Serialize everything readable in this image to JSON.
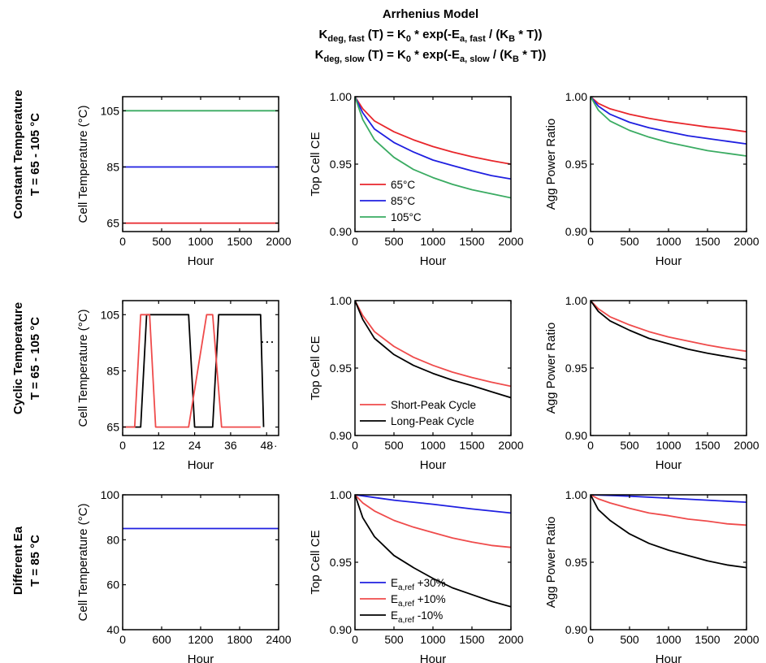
{
  "title": {
    "line1": "Arrhenius Model",
    "line2": {
      "a": "K",
      "b": "deg, fast",
      "c": " (T) = K",
      "d": "0",
      "e": " * exp(-E",
      "f": "a, fast",
      "g": " / (K",
      "h": "B",
      "i": " * T))"
    },
    "line3": {
      "a": "K",
      "b": "deg, slow",
      "c": " (T) = K",
      "d": "0",
      "e": " * exp(-E",
      "f": "a, slow",
      "g": " / (K",
      "h": "B",
      "i": " * T))"
    }
  },
  "rows": [
    {
      "label1": "Constant Temperature",
      "label2": "T = 65 - 105 °C"
    },
    {
      "label1": "Cyclic Temperature",
      "label2": "T = 65 - 105 °C"
    },
    {
      "label1": "Different Ea",
      "label2": "T = 85 °C"
    }
  ],
  "colors": {
    "red": "#e8262b",
    "blue": "#1f1fe0",
    "green": "#3aab62",
    "salmon": "#ef4b4b",
    "black": "#000000"
  },
  "chart_data": [
    {
      "id": "c00",
      "type": "line",
      "xlabel": "Hour",
      "ylabel": "Cell Temperature (°C)",
      "xlim": [
        0,
        2000
      ],
      "ylim": [
        62,
        110
      ],
      "xticks": [
        "0",
        "500",
        "1000",
        "1500",
        "2000"
      ],
      "xtickvals": [
        0,
        500,
        1000,
        1500,
        2000
      ],
      "yticks": [
        "65",
        "85",
        "105"
      ],
      "ytickvals": [
        65,
        85,
        105
      ],
      "series": [
        {
          "color": "#e8262b",
          "x": [
            0,
            2000
          ],
          "y": [
            65,
            65
          ]
        },
        {
          "color": "#1f1fe0",
          "x": [
            0,
            2000
          ],
          "y": [
            85,
            85
          ]
        },
        {
          "color": "#3aab62",
          "x": [
            0,
            2000
          ],
          "y": [
            105,
            105
          ]
        }
      ]
    },
    {
      "id": "c01",
      "type": "line",
      "xlabel": "Hour",
      "ylabel": "Top Cell CE",
      "xlim": [
        0,
        2000
      ],
      "ylim": [
        0.9,
        1.0
      ],
      "xticks": [
        "0",
        "500",
        "1000",
        "1500",
        "2000"
      ],
      "xtickvals": [
        0,
        500,
        1000,
        1500,
        2000
      ],
      "yticks": [
        "0.90",
        "0.95",
        "1.00"
      ],
      "ytickvals": [
        0.9,
        0.95,
        1.0
      ],
      "legend_position": "bottom-left",
      "series": [
        {
          "name": "65°C",
          "color": "#e8262b",
          "x": [
            0,
            100,
            250,
            500,
            750,
            1000,
            1250,
            1500,
            1750,
            2000
          ],
          "y": [
            1.0,
            0.991,
            0.982,
            0.974,
            0.968,
            0.963,
            0.959,
            0.9555,
            0.9525,
            0.95
          ]
        },
        {
          "name": "85°C",
          "color": "#1f1fe0",
          "x": [
            0,
            100,
            250,
            500,
            750,
            1000,
            1250,
            1500,
            1750,
            2000
          ],
          "y": [
            1.0,
            0.988,
            0.976,
            0.966,
            0.959,
            0.953,
            0.949,
            0.945,
            0.9415,
            0.939
          ]
        },
        {
          "name": "105°C",
          "color": "#3aab62",
          "x": [
            0,
            100,
            250,
            500,
            750,
            1000,
            1250,
            1500,
            1750,
            2000
          ],
          "y": [
            1.0,
            0.983,
            0.968,
            0.955,
            0.946,
            0.94,
            0.935,
            0.931,
            0.928,
            0.925
          ]
        }
      ]
    },
    {
      "id": "c02",
      "type": "line",
      "xlabel": "Hour",
      "ylabel": "Agg Power Ratio",
      "xlim": [
        0,
        2000
      ],
      "ylim": [
        0.9,
        1.0
      ],
      "xticks": [
        "0",
        "500",
        "1000",
        "1500",
        "2000"
      ],
      "xtickvals": [
        0,
        500,
        1000,
        1500,
        2000
      ],
      "yticks": [
        "0.90",
        "0.95",
        "1.00"
      ],
      "ytickvals": [
        0.9,
        0.95,
        1.0
      ],
      "series": [
        {
          "color": "#e8262b",
          "x": [
            0,
            100,
            250,
            500,
            750,
            1000,
            1250,
            1500,
            1750,
            2000
          ],
          "y": [
            1.0,
            0.995,
            0.991,
            0.987,
            0.984,
            0.9815,
            0.9795,
            0.9775,
            0.976,
            0.974
          ]
        },
        {
          "color": "#1f1fe0",
          "x": [
            0,
            100,
            250,
            500,
            750,
            1000,
            1250,
            1500,
            1750,
            2000
          ],
          "y": [
            1.0,
            0.993,
            0.987,
            0.981,
            0.977,
            0.974,
            0.971,
            0.969,
            0.967,
            0.965
          ]
        },
        {
          "color": "#3aab62",
          "x": [
            0,
            100,
            250,
            500,
            750,
            1000,
            1250,
            1500,
            1750,
            2000
          ],
          "y": [
            1.0,
            0.99,
            0.982,
            0.975,
            0.97,
            0.966,
            0.963,
            0.96,
            0.958,
            0.956
          ]
        }
      ]
    },
    {
      "id": "c10",
      "type": "line",
      "xlabel": "Hour",
      "ylabel": "Cell Temperature (°C)",
      "xlim": [
        0,
        52
      ],
      "ylim": [
        62,
        110
      ],
      "xticks": [
        "0",
        "12",
        "24",
        "36",
        "48"
      ],
      "xtickvals": [
        0,
        12,
        24,
        36,
        48
      ],
      "yticks": [
        "65",
        "85",
        "105"
      ],
      "ytickvals": [
        65,
        85,
        105
      ],
      "annotation": "···",
      "after_last_tick": "···",
      "series": [
        {
          "name": "Long-Peak Cycle",
          "color": "#000000",
          "x": [
            0,
            6,
            8,
            14,
            16,
            22,
            24,
            30,
            32,
            38,
            40,
            46,
            47
          ],
          "y": [
            65,
            65,
            105,
            105,
            105,
            105,
            65,
            65,
            105,
            105,
            105,
            105,
            65
          ]
        },
        {
          "name": "Short-Peak Cycle",
          "color": "#ef4b4b",
          "x": [
            0,
            4,
            6,
            9,
            11,
            14,
            20,
            22,
            28,
            30,
            33,
            35,
            38,
            44,
            46
          ],
          "y": [
            65,
            65,
            105,
            105,
            65,
            65,
            65,
            65,
            105,
            105,
            65,
            65,
            65,
            65,
            65
          ]
        }
      ]
    },
    {
      "id": "c11",
      "type": "line",
      "xlabel": "Hour",
      "ylabel": "Top Cell CE",
      "xlim": [
        0,
        2000
      ],
      "ylim": [
        0.9,
        1.0
      ],
      "xticks": [
        "0",
        "500",
        "1000",
        "1500",
        "2000"
      ],
      "xtickvals": [
        0,
        500,
        1000,
        1500,
        2000
      ],
      "yticks": [
        "0.90",
        "0.95",
        "1.00"
      ],
      "ytickvals": [
        0.9,
        0.95,
        1.0
      ],
      "legend_position": "bottom-left",
      "series": [
        {
          "name": "Short-Peak Cycle",
          "color": "#ef4b4b",
          "x": [
            0,
            100,
            250,
            500,
            750,
            1000,
            1250,
            1500,
            1750,
            2000
          ],
          "y": [
            1.0,
            0.989,
            0.977,
            0.966,
            0.958,
            0.952,
            0.947,
            0.943,
            0.9395,
            0.9365
          ]
        },
        {
          "name": "Long-Peak Cycle",
          "color": "#000000",
          "x": [
            0,
            100,
            250,
            500,
            750,
            1000,
            1250,
            1500,
            1750,
            2000
          ],
          "y": [
            1.0,
            0.986,
            0.972,
            0.96,
            0.952,
            0.946,
            0.941,
            0.937,
            0.9325,
            0.928
          ]
        }
      ]
    },
    {
      "id": "c12",
      "type": "line",
      "xlabel": "Hour",
      "ylabel": "Agg Power Ratio",
      "xlim": [
        0,
        2000
      ],
      "ylim": [
        0.9,
        1.0
      ],
      "xticks": [
        "0",
        "500",
        "1000",
        "1500",
        "2000"
      ],
      "xtickvals": [
        0,
        500,
        1000,
        1500,
        2000
      ],
      "yticks": [
        "0.90",
        "0.95",
        "1.00"
      ],
      "ytickvals": [
        0.9,
        0.95,
        1.0
      ],
      "series": [
        {
          "color": "#ef4b4b",
          "x": [
            0,
            100,
            250,
            500,
            750,
            1000,
            1250,
            1500,
            1750,
            2000
          ],
          "y": [
            1.0,
            0.994,
            0.988,
            0.982,
            0.977,
            0.973,
            0.97,
            0.967,
            0.9645,
            0.9625
          ]
        },
        {
          "color": "#000000",
          "x": [
            0,
            100,
            250,
            500,
            750,
            1000,
            1250,
            1500,
            1750,
            2000
          ],
          "y": [
            1.0,
            0.992,
            0.985,
            0.978,
            0.972,
            0.968,
            0.964,
            0.961,
            0.9585,
            0.956
          ]
        }
      ]
    },
    {
      "id": "c20",
      "type": "line",
      "xlabel": "Hour",
      "ylabel": "Cell Temperature (°C)",
      "xlim": [
        0,
        2400
      ],
      "ylim": [
        40,
        100
      ],
      "xticks": [
        "0",
        "600",
        "1200",
        "1800",
        "2400"
      ],
      "xtickvals": [
        0,
        600,
        1200,
        1800,
        2400
      ],
      "yticks": [
        "40",
        "60",
        "80",
        "100"
      ],
      "ytickvals": [
        40,
        60,
        80,
        100
      ],
      "series": [
        {
          "color": "#1f1fe0",
          "x": [
            0,
            2400
          ],
          "y": [
            85,
            85
          ]
        }
      ]
    },
    {
      "id": "c21",
      "type": "line",
      "xlabel": "Hour",
      "ylabel": "Top Cell CE",
      "xlim": [
        0,
        2000
      ],
      "ylim": [
        0.9,
        1.0
      ],
      "xticks": [
        "0",
        "500",
        "1000",
        "1500",
        "2000"
      ],
      "xtickvals": [
        0,
        500,
        1000,
        1500,
        2000
      ],
      "yticks": [
        "0.90",
        "0.95",
        "1.00"
      ],
      "ytickvals": [
        0.9,
        0.95,
        1.0
      ],
      "legend_position": "bottom-left",
      "series": [
        {
          "name": "E_a,ref +30%",
          "color": "#1f1fe0",
          "x": [
            0,
            250,
            500,
            1000,
            1500,
            2000
          ],
          "y": [
            1.0,
            0.998,
            0.996,
            0.993,
            0.9895,
            0.9865
          ]
        },
        {
          "name": "E_a,ref +10%",
          "color": "#ef4b4b",
          "x": [
            0,
            100,
            250,
            500,
            750,
            1000,
            1250,
            1500,
            1750,
            2000
          ],
          "y": [
            1.0,
            0.994,
            0.988,
            0.981,
            0.976,
            0.972,
            0.968,
            0.965,
            0.9625,
            0.961
          ]
        },
        {
          "name": "E_a,ref -10%",
          "color": "#000000",
          "x": [
            0,
            100,
            250,
            500,
            750,
            1000,
            1250,
            1500,
            1750,
            2000
          ],
          "y": [
            1.0,
            0.983,
            0.969,
            0.955,
            0.946,
            0.938,
            0.931,
            0.926,
            0.921,
            0.917
          ]
        }
      ]
    },
    {
      "id": "c22",
      "type": "line",
      "xlabel": "Hour",
      "ylabel": "Agg Power Ratio",
      "xlim": [
        0,
        2000
      ],
      "ylim": [
        0.9,
        1.0
      ],
      "xticks": [
        "0",
        "500",
        "1000",
        "1500",
        "2000"
      ],
      "xtickvals": [
        0,
        500,
        1000,
        1500,
        2000
      ],
      "yticks": [
        "0.90",
        "0.95",
        "1.00"
      ],
      "ytickvals": [
        0.9,
        0.95,
        1.0
      ],
      "series": [
        {
          "color": "#1f1fe0",
          "x": [
            0,
            500,
            1000,
            1500,
            2000
          ],
          "y": [
            1.0,
            0.999,
            0.9975,
            0.996,
            0.9945
          ]
        },
        {
          "color": "#ef4b4b",
          "x": [
            0,
            100,
            250,
            500,
            750,
            1000,
            1250,
            1500,
            1750,
            2000
          ],
          "y": [
            1.0,
            0.997,
            0.994,
            0.99,
            0.9865,
            0.9845,
            0.982,
            0.9805,
            0.9785,
            0.9775
          ]
        },
        {
          "color": "#000000",
          "x": [
            0,
            100,
            250,
            500,
            750,
            1000,
            1250,
            1500,
            1750,
            2000
          ],
          "y": [
            1.0,
            0.989,
            0.981,
            0.971,
            0.964,
            0.959,
            0.955,
            0.951,
            0.948,
            0.946
          ]
        }
      ]
    }
  ]
}
